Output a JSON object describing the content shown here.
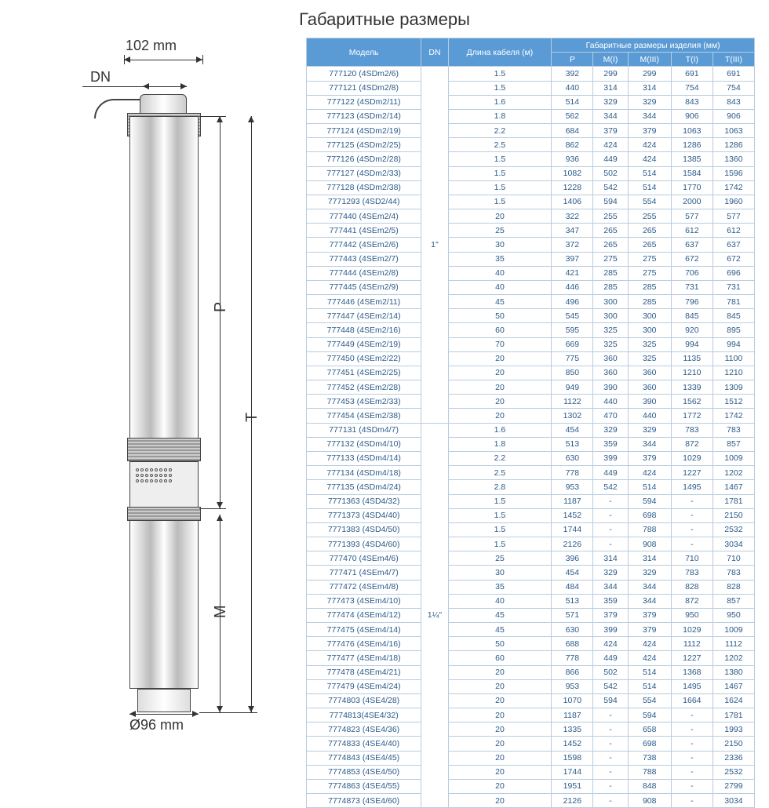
{
  "title": "Габаритные размеры",
  "diagram": {
    "top_dim": "102 mm",
    "dn_label": "DN",
    "p_label": "P",
    "t_label": "T",
    "m_label": "M",
    "bottom_dim": "Ø96 mm"
  },
  "table": {
    "headers": {
      "model": "Модель",
      "dn": "DN",
      "cable": "Длина кабеля (м)",
      "overall": "Габаритные размеры изделия (мм)",
      "p": "P",
      "m1": "M(I)",
      "m3": "M(III)",
      "t1": "T(I)",
      "t3": "T(III)"
    },
    "groups": [
      {
        "dn": "1\"",
        "rows": [
          {
            "model": "777120 (4SDm2/6)",
            "cable": "1.5",
            "p": "392",
            "m1": "299",
            "m3": "299",
            "t1": "691",
            "t3": "691"
          },
          {
            "model": "777121 (4SDm2/8)",
            "cable": "1.5",
            "p": "440",
            "m1": "314",
            "m3": "314",
            "t1": "754",
            "t3": "754"
          },
          {
            "model": "777122 (4SDm2/11)",
            "cable": "1.6",
            "p": "514",
            "m1": "329",
            "m3": "329",
            "t1": "843",
            "t3": "843"
          },
          {
            "model": "777123 (4SDm2/14)",
            "cable": "1.8",
            "p": "562",
            "m1": "344",
            "m3": "344",
            "t1": "906",
            "t3": "906"
          },
          {
            "model": "777124 (4SDm2/19)",
            "cable": "2.2",
            "p": "684",
            "m1": "379",
            "m3": "379",
            "t1": "1063",
            "t3": "1063"
          },
          {
            "model": "777125 (4SDm2/25)",
            "cable": "2.5",
            "p": "862",
            "m1": "424",
            "m3": "424",
            "t1": "1286",
            "t3": "1286"
          },
          {
            "model": "777126 (4SDm2/28)",
            "cable": "1.5",
            "p": "936",
            "m1": "449",
            "m3": "424",
            "t1": "1385",
            "t3": "1360"
          },
          {
            "model": "777127 (4SDm2/33)",
            "cable": "1.5",
            "p": "1082",
            "m1": "502",
            "m3": "514",
            "t1": "1584",
            "t3": "1596"
          },
          {
            "model": "777128 (4SDm2/38)",
            "cable": "1.5",
            "p": "1228",
            "m1": "542",
            "m3": "514",
            "t1": "1770",
            "t3": "1742"
          },
          {
            "model": "7771293 (4SD2/44)",
            "cable": "1.5",
            "p": "1406",
            "m1": "594",
            "m3": "554",
            "t1": "2000",
            "t3": "1960"
          },
          {
            "model": "777440 (4SEm2/4)",
            "cable": "20",
            "p": "322",
            "m1": "255",
            "m3": "255",
            "t1": "577",
            "t3": "577"
          },
          {
            "model": "777441 (4SEm2/5)",
            "cable": "25",
            "p": "347",
            "m1": "265",
            "m3": "265",
            "t1": "612",
            "t3": "612"
          },
          {
            "model": "777442 (4SEm2/6)",
            "cable": "30",
            "p": "372",
            "m1": "265",
            "m3": "265",
            "t1": "637",
            "t3": "637"
          },
          {
            "model": "777443 (4SEm2/7)",
            "cable": "35",
            "p": "397",
            "m1": "275",
            "m3": "275",
            "t1": "672",
            "t3": "672"
          },
          {
            "model": "777444 (4SEm2/8)",
            "cable": "40",
            "p": "421",
            "m1": "285",
            "m3": "275",
            "t1": "706",
            "t3": "696"
          },
          {
            "model": "777445 (4SEm2/9)",
            "cable": "40",
            "p": "446",
            "m1": "285",
            "m3": "285",
            "t1": "731",
            "t3": "731"
          },
          {
            "model": "777446 (4SEm2/11)",
            "cable": "45",
            "p": "496",
            "m1": "300",
            "m3": "285",
            "t1": "796",
            "t3": "781"
          },
          {
            "model": "777447 (4SEm2/14)",
            "cable": "50",
            "p": "545",
            "m1": "300",
            "m3": "300",
            "t1": "845",
            "t3": "845"
          },
          {
            "model": "777448 (4SEm2/16)",
            "cable": "60",
            "p": "595",
            "m1": "325",
            "m3": "300",
            "t1": "920",
            "t3": "895"
          },
          {
            "model": "777449 (4SEm2/19)",
            "cable": "70",
            "p": "669",
            "m1": "325",
            "m3": "325",
            "t1": "994",
            "t3": "994"
          },
          {
            "model": "777450 (4SEm2/22)",
            "cable": "20",
            "p": "775",
            "m1": "360",
            "m3": "325",
            "t1": "1135",
            "t3": "1100"
          },
          {
            "model": "777451 (4SEm2/25)",
            "cable": "20",
            "p": "850",
            "m1": "360",
            "m3": "360",
            "t1": "1210",
            "t3": "1210"
          },
          {
            "model": "777452 (4SEm2/28)",
            "cable": "20",
            "p": "949",
            "m1": "390",
            "m3": "360",
            "t1": "1339",
            "t3": "1309"
          },
          {
            "model": "777453 (4SEm2/33)",
            "cable": "20",
            "p": "1122",
            "m1": "440",
            "m3": "390",
            "t1": "1562",
            "t3": "1512"
          },
          {
            "model": "777454 (4SEm2/38)",
            "cable": "20",
            "p": "1302",
            "m1": "470",
            "m3": "440",
            "t1": "1772",
            "t3": "1742"
          }
        ]
      },
      {
        "dn": "1¼\"",
        "rows": [
          {
            "model": "777131 (4SDm4/7)",
            "cable": "1.6",
            "p": "454",
            "m1": "329",
            "m3": "329",
            "t1": "783",
            "t3": "783"
          },
          {
            "model": "777132 (4SDm4/10)",
            "cable": "1.8",
            "p": "513",
            "m1": "359",
            "m3": "344",
            "t1": "872",
            "t3": "857"
          },
          {
            "model": "777133 (4SDm4/14)",
            "cable": "2.2",
            "p": "630",
            "m1": "399",
            "m3": "379",
            "t1": "1029",
            "t3": "1009"
          },
          {
            "model": "777134 (4SDm4/18)",
            "cable": "2.5",
            "p": "778",
            "m1": "449",
            "m3": "424",
            "t1": "1227",
            "t3": "1202"
          },
          {
            "model": "777135 (4SDm4/24)",
            "cable": "2.8",
            "p": "953",
            "m1": "542",
            "m3": "514",
            "t1": "1495",
            "t3": "1467"
          },
          {
            "model": "7771363 (4SD4/32)",
            "cable": "1.5",
            "p": "1187",
            "m1": "-",
            "m3": "594",
            "t1": "-",
            "t3": "1781"
          },
          {
            "model": "7771373 (4SD4/40)",
            "cable": "1.5",
            "p": "1452",
            "m1": "-",
            "m3": "698",
            "t1": "-",
            "t3": "2150"
          },
          {
            "model": "7771383 (4SD4/50)",
            "cable": "1.5",
            "p": "1744",
            "m1": "-",
            "m3": "788",
            "t1": "-",
            "t3": "2532"
          },
          {
            "model": "7771393 (4SD4/60)",
            "cable": "1.5",
            "p": "2126",
            "m1": "-",
            "m3": "908",
            "t1": "-",
            "t3": "3034"
          },
          {
            "model": "777470 (4SEm4/6)",
            "cable": "25",
            "p": "396",
            "m1": "314",
            "m3": "314",
            "t1": "710",
            "t3": "710"
          },
          {
            "model": "777471 (4SEm4/7)",
            "cable": "30",
            "p": "454",
            "m1": "329",
            "m3": "329",
            "t1": "783",
            "t3": "783"
          },
          {
            "model": "777472 (4SEm4/8)",
            "cable": "35",
            "p": "484",
            "m1": "344",
            "m3": "344",
            "t1": "828",
            "t3": "828"
          },
          {
            "model": "777473 (4SEm4/10)",
            "cable": "40",
            "p": "513",
            "m1": "359",
            "m3": "344",
            "t1": "872",
            "t3": "857"
          },
          {
            "model": "777474 (4SEm4/12)",
            "cable": "45",
            "p": "571",
            "m1": "379",
            "m3": "379",
            "t1": "950",
            "t3": "950"
          },
          {
            "model": "777475 (4SEm4/14)",
            "cable": "45",
            "p": "630",
            "m1": "399",
            "m3": "379",
            "t1": "1029",
            "t3": "1009"
          },
          {
            "model": "777476 (4SEm4/16)",
            "cable": "50",
            "p": "688",
            "m1": "424",
            "m3": "424",
            "t1": "1112",
            "t3": "1112"
          },
          {
            "model": "777477 (4SEm4/18)",
            "cable": "60",
            "p": "778",
            "m1": "449",
            "m3": "424",
            "t1": "1227",
            "t3": "1202"
          },
          {
            "model": "777478 (4SEm4/21)",
            "cable": "20",
            "p": "866",
            "m1": "502",
            "m3": "514",
            "t1": "1368",
            "t3": "1380"
          },
          {
            "model": "777479 (4SEm4/24)",
            "cable": "20",
            "p": "953",
            "m1": "542",
            "m3": "514",
            "t1": "1495",
            "t3": "1467"
          },
          {
            "model": "7774803 (4SE4/28)",
            "cable": "20",
            "p": "1070",
            "m1": "594",
            "m3": "554",
            "t1": "1664",
            "t3": "1624"
          },
          {
            "model": "7774813(4SE4/32)",
            "cable": "20",
            "p": "1187",
            "m1": "-",
            "m3": "594",
            "t1": "-",
            "t3": "1781"
          },
          {
            "model": "7774823 (4SE4/36)",
            "cable": "20",
            "p": "1335",
            "m1": "-",
            "m3": "658",
            "t1": "-",
            "t3": "1993"
          },
          {
            "model": "7774833 (4SE4/40)",
            "cable": "20",
            "p": "1452",
            "m1": "-",
            "m3": "698",
            "t1": "-",
            "t3": "2150"
          },
          {
            "model": "7774843 (4SE4/45)",
            "cable": "20",
            "p": "1598",
            "m1": "-",
            "m3": "738",
            "t1": "-",
            "t3": "2336"
          },
          {
            "model": "7774853 (4SE4/50)",
            "cable": "20",
            "p": "1744",
            "m1": "-",
            "m3": "788",
            "t1": "-",
            "t3": "2532"
          },
          {
            "model": "7774863 (4SE4/55)",
            "cable": "20",
            "p": "1951",
            "m1": "-",
            "m3": "848",
            "t1": "-",
            "t3": "2799"
          },
          {
            "model": "7774873 (4SE4/60)",
            "cable": "20",
            "p": "2126",
            "m1": "-",
            "m3": "908",
            "t1": "-",
            "t3": "3034"
          }
        ]
      }
    ]
  },
  "styling": {
    "header_bg": "#5b9bd5",
    "header_fg": "#ffffff",
    "cell_border": "#b8cce0",
    "cell_fg": "#2a5a8a",
    "title_fontsize": 22,
    "table_fontsize": 10.5,
    "diagram_label_fontsize": 18
  }
}
